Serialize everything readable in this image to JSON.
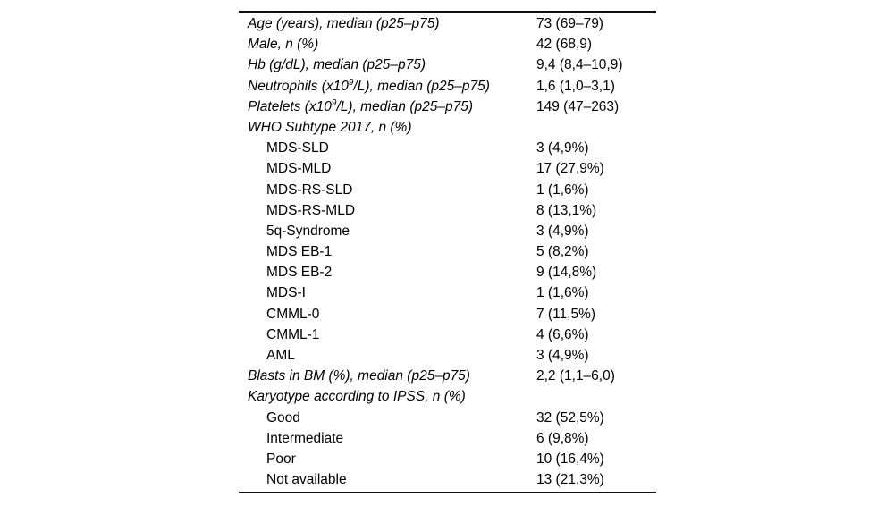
{
  "table": {
    "rows": [
      {
        "label": "Age (years), median (p25–p75)",
        "value": "73 (69–79)"
      },
      {
        "label": "Male, n (%)",
        "value": "42 (68,9)"
      },
      {
        "label": "Hb (g/dL), median (p25–p75)",
        "value": "9,4 (8,4–10,9)"
      },
      {
        "label_pre": "Neutrophils (x10",
        "label_sup": "9",
        "label_post": "/L), median (p25–p75)",
        "value": "1,6 (1,0–3,1)"
      },
      {
        "label_pre": "Platelets (x10",
        "label_sup": "9",
        "label_post": "/L), median (p25–p75)",
        "value": "149 (47–263)"
      },
      {
        "label": "WHO Subtype 2017, n (%)",
        "value": ""
      },
      {
        "label": "MDS-SLD",
        "value": "3 (4,9%)"
      },
      {
        "label": "MDS-MLD",
        "value": "17 (27,9%)"
      },
      {
        "label": "MDS-RS-SLD",
        "value": "1 (1,6%)"
      },
      {
        "label": "MDS-RS-MLD",
        "value": "8 (13,1%)"
      },
      {
        "label": "5q-Syndrome",
        "value": "3 (4,9%)"
      },
      {
        "label": "MDS EB-1",
        "value": "5 (8,2%)"
      },
      {
        "label": "MDS EB-2",
        "value": "9 (14,8%)"
      },
      {
        "label": "MDS-I",
        "value": "1 (1,6%)"
      },
      {
        "label": "CMML-0",
        "value": "7 (11,5%)"
      },
      {
        "label": "CMML-1",
        "value": "4 (6,6%)"
      },
      {
        "label": "AML",
        "value": "3 (4,9%)"
      },
      {
        "label": "Blasts in BM (%), median (p25–p75)",
        "value": "2,2 (1,1–6,0)"
      },
      {
        "label": "Karyotype according to IPSS, n (%)",
        "value": ""
      },
      {
        "label": "Good",
        "value": "32 (52,5%)"
      },
      {
        "label": "Intermediate",
        "value": "6 (9,8%)"
      },
      {
        "label": "Poor",
        "value": "10 (16,4%)"
      },
      {
        "label": "Not available",
        "value": "13 (21,3%)"
      }
    ]
  }
}
